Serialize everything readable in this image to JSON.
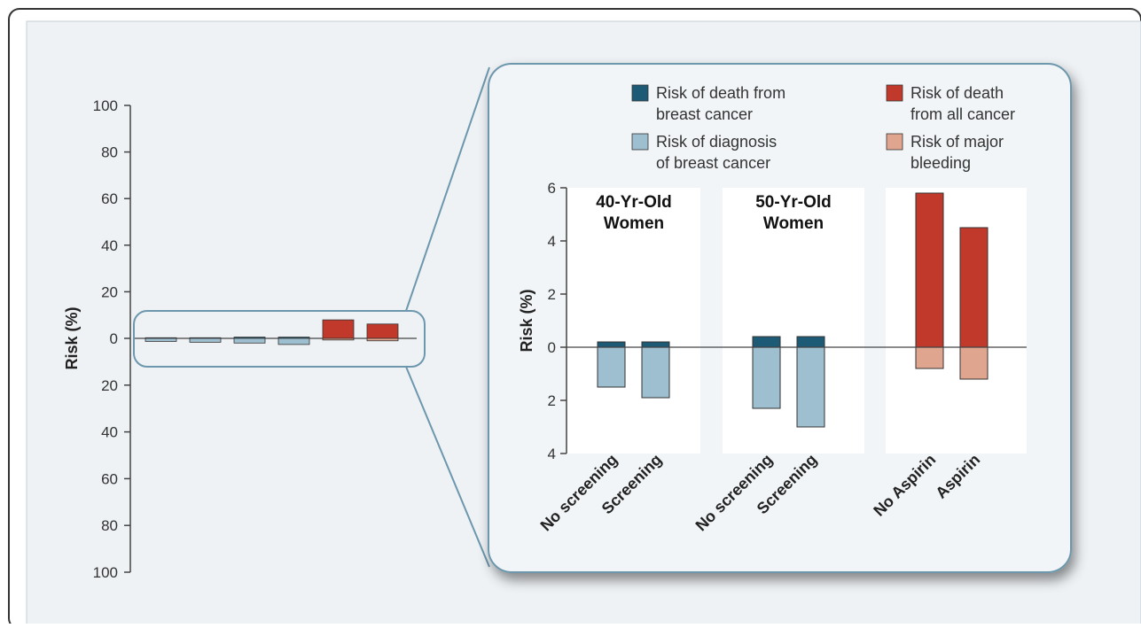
{
  "colors": {
    "frame_bg": "#eef2f5",
    "panel_bg": "#f1f5f7",
    "zoom_stroke": "#6d97ad",
    "axis": "#444444",
    "death_breast": "#1d5a75",
    "diag_breast": "#9ebfcf",
    "death_all": "#c0392b",
    "major_bleed": "#e0a58e"
  },
  "chart_data": [
    {
      "type": "bar",
      "ylabel": "Risk (%)",
      "y_ticks_up": [
        "100",
        "80",
        "60",
        "40",
        "20",
        "0"
      ],
      "y_ticks_down": [
        "20",
        "40",
        "60",
        "80",
        "100"
      ],
      "ylim_up": [
        0,
        100
      ],
      "ylim_down": [
        0,
        100
      ],
      "categories": [
        "No screening",
        "Screening",
        "No screening",
        "Screening",
        "No Aspirin",
        "Aspirin"
      ],
      "series": [
        {
          "name": "Risk of death from breast cancer",
          "direction": "up",
          "values": [
            0.2,
            0.2,
            0.4,
            0.4,
            null,
            null
          ]
        },
        {
          "name": "Risk of diagnosis of breast cancer",
          "direction": "down",
          "values": [
            1.5,
            1.9,
            2.3,
            3.0,
            null,
            null
          ]
        },
        {
          "name": "Risk of death from all cancer",
          "direction": "up",
          "values": [
            null,
            null,
            null,
            null,
            5.8,
            4.5
          ]
        },
        {
          "name": "Risk of major bleeding",
          "direction": "down",
          "values": [
            null,
            null,
            null,
            null,
            0.8,
            1.2
          ]
        }
      ]
    },
    {
      "type": "bar",
      "ylabel": "Risk (%)",
      "y_ticks_up": [
        "6",
        "4",
        "2",
        "0"
      ],
      "y_ticks_down": [
        "2",
        "4"
      ],
      "ylim_up": [
        0,
        6
      ],
      "ylim_down": [
        0,
        4
      ],
      "legend": [
        {
          "line1": "Risk of death from",
          "line2": "breast cancer",
          "color_key": "death_breast"
        },
        {
          "line1": "Risk of death",
          "line2": "from all cancer",
          "color_key": "death_all"
        },
        {
          "line1": "Risk of diagnosis",
          "line2": "of breast cancer",
          "color_key": "diag_breast"
        },
        {
          "line1": "Risk of major",
          "line2": "bleeding",
          "color_key": "major_bleed"
        }
      ],
      "groups": [
        {
          "title_line1": "40-Yr-Old",
          "title_line2": "Women",
          "categories": [
            "No screening",
            "Screening"
          ],
          "up_color": "death_breast",
          "down_color": "diag_breast",
          "up": [
            0.2,
            0.2
          ],
          "down": [
            1.5,
            1.9
          ]
        },
        {
          "title_line1": "50-Yr-Old",
          "title_line2": "Women",
          "categories": [
            "No screening",
            "Screening"
          ],
          "up_color": "death_breast",
          "down_color": "diag_breast",
          "up": [
            0.4,
            0.4
          ],
          "down": [
            2.3,
            3.0
          ]
        },
        {
          "title_line1": "",
          "title_line2": "",
          "categories": [
            "No Aspirin",
            "Aspirin"
          ],
          "up_color": "death_all",
          "down_color": "major_bleed",
          "up": [
            5.8,
            4.5
          ],
          "down": [
            0.8,
            1.2
          ]
        }
      ]
    }
  ]
}
